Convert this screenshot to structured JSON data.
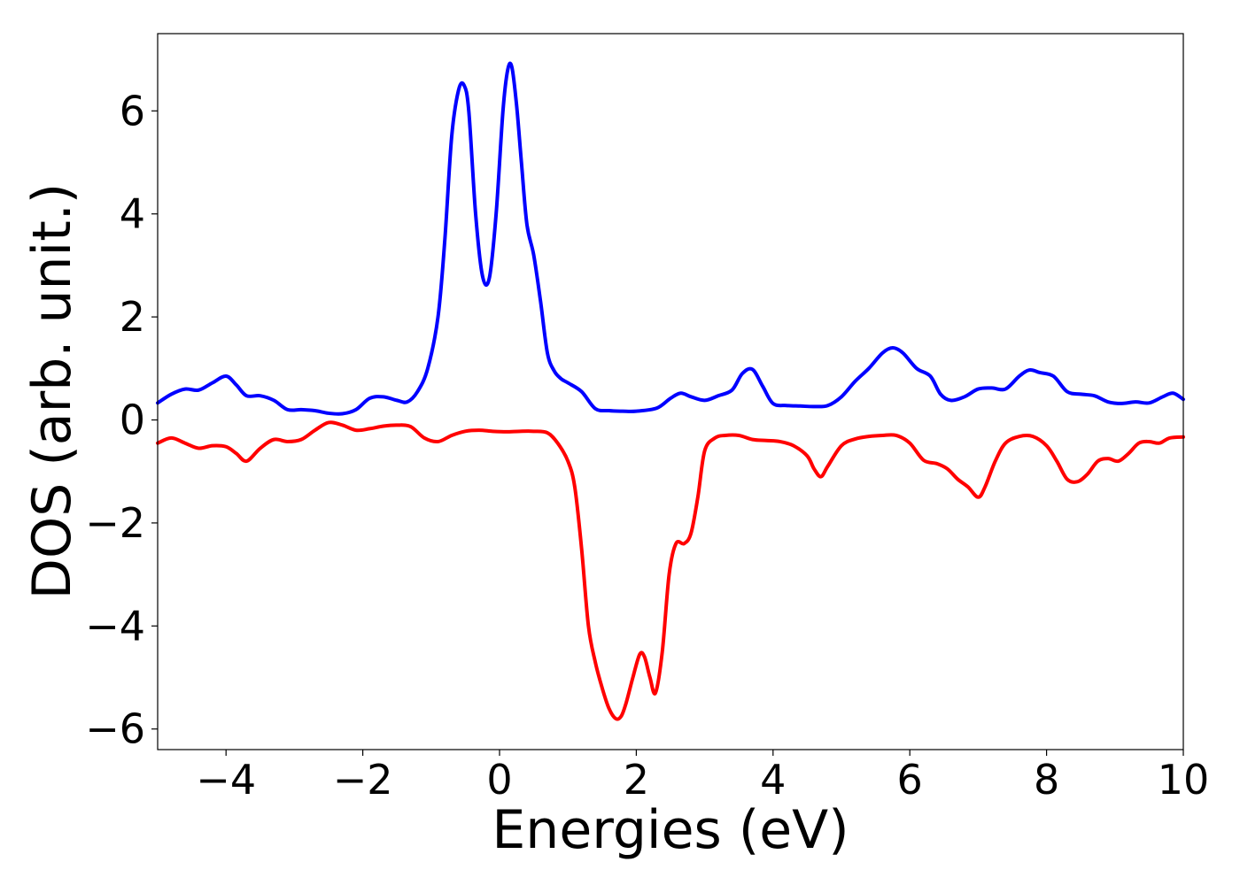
{
  "chart_data": {
    "type": "line",
    "title": "",
    "xlabel": "Energies (eV)",
    "ylabel": "DOS (arb. unit.)",
    "xlim": [
      -5,
      10
    ],
    "ylim": [
      -6.4,
      7.5
    ],
    "grid": false,
    "legend": "none",
    "xticks": [
      -4,
      -2,
      0,
      2,
      4,
      6,
      8,
      10
    ],
    "yticks": [
      -6,
      -4,
      -2,
      0,
      2,
      4,
      6
    ],
    "xtick_labels": [
      "−4",
      "−2",
      "0",
      "2",
      "4",
      "6",
      "8",
      "10"
    ],
    "ytick_labels": [
      "−6",
      "−4",
      "−2",
      "0",
      "2",
      "4",
      "6"
    ],
    "series": [
      {
        "color": "#0000ff",
        "x": [
          -5.0,
          -4.8,
          -4.6,
          -4.4,
          -4.2,
          -4.0,
          -3.85,
          -3.7,
          -3.5,
          -3.3,
          -3.1,
          -2.9,
          -2.7,
          -2.5,
          -2.3,
          -2.1,
          -1.9,
          -1.7,
          -1.5,
          -1.35,
          -1.2,
          -1.05,
          -0.9,
          -0.8,
          -0.7,
          -0.6,
          -0.52,
          -0.45,
          -0.35,
          -0.25,
          -0.15,
          -0.05,
          0.05,
          0.12,
          0.18,
          0.25,
          0.32,
          0.4,
          0.5,
          0.6,
          0.7,
          0.8,
          0.9,
          1.0,
          1.2,
          1.4,
          1.6,
          1.8,
          2.0,
          2.3,
          2.5,
          2.65,
          2.8,
          3.0,
          3.2,
          3.4,
          3.55,
          3.7,
          3.85,
          4.0,
          4.2,
          4.4,
          4.6,
          4.8,
          5.0,
          5.2,
          5.4,
          5.6,
          5.75,
          5.9,
          6.1,
          6.3,
          6.45,
          6.6,
          6.8,
          7.0,
          7.2,
          7.4,
          7.6,
          7.75,
          7.9,
          8.1,
          8.3,
          8.5,
          8.7,
          8.9,
          9.1,
          9.3,
          9.5,
          9.7,
          9.85,
          10.0
        ],
        "y": [
          0.33,
          0.5,
          0.6,
          0.58,
          0.72,
          0.85,
          0.68,
          0.47,
          0.47,
          0.38,
          0.2,
          0.2,
          0.18,
          0.13,
          0.12,
          0.2,
          0.42,
          0.45,
          0.38,
          0.35,
          0.55,
          1.0,
          2.0,
          3.5,
          5.5,
          6.4,
          6.5,
          6.0,
          4.0,
          2.8,
          2.75,
          4.0,
          6.0,
          6.8,
          6.85,
          6.1,
          5.0,
          3.8,
          3.2,
          2.3,
          1.3,
          0.95,
          0.8,
          0.72,
          0.55,
          0.22,
          0.18,
          0.17,
          0.17,
          0.23,
          0.42,
          0.52,
          0.45,
          0.38,
          0.47,
          0.58,
          0.9,
          0.98,
          0.65,
          0.32,
          0.28,
          0.27,
          0.26,
          0.28,
          0.45,
          0.75,
          1.0,
          1.3,
          1.4,
          1.3,
          1.0,
          0.85,
          0.5,
          0.38,
          0.45,
          0.6,
          0.62,
          0.6,
          0.85,
          0.97,
          0.92,
          0.85,
          0.55,
          0.5,
          0.47,
          0.35,
          0.32,
          0.35,
          0.33,
          0.45,
          0.52,
          0.4
        ]
      },
      {
        "color": "#ff0000",
        "x": [
          -5.0,
          -4.8,
          -4.6,
          -4.4,
          -4.2,
          -4.0,
          -3.85,
          -3.7,
          -3.5,
          -3.3,
          -3.1,
          -2.9,
          -2.7,
          -2.5,
          -2.3,
          -2.1,
          -1.9,
          -1.7,
          -1.5,
          -1.3,
          -1.1,
          -0.9,
          -0.7,
          -0.5,
          -0.3,
          -0.1,
          0.1,
          0.3,
          0.5,
          0.7,
          0.85,
          1.0,
          1.1,
          1.2,
          1.3,
          1.4,
          1.5,
          1.6,
          1.7,
          1.78,
          1.85,
          1.95,
          2.05,
          2.12,
          2.2,
          2.28,
          2.38,
          2.48,
          2.58,
          2.7,
          2.8,
          2.9,
          3.0,
          3.15,
          3.3,
          3.5,
          3.7,
          3.9,
          4.1,
          4.3,
          4.5,
          4.6,
          4.7,
          4.8,
          5.0,
          5.2,
          5.4,
          5.6,
          5.8,
          6.0,
          6.2,
          6.4,
          6.55,
          6.7,
          6.85,
          7.0,
          7.1,
          7.25,
          7.4,
          7.6,
          7.8,
          8.0,
          8.15,
          8.3,
          8.45,
          8.6,
          8.75,
          8.9,
          9.05,
          9.2,
          9.35,
          9.5,
          9.65,
          9.8,
          10.0
        ],
        "y": [
          -0.45,
          -0.35,
          -0.45,
          -0.55,
          -0.5,
          -0.52,
          -0.65,
          -0.8,
          -0.55,
          -0.38,
          -0.42,
          -0.38,
          -0.2,
          -0.05,
          -0.1,
          -0.2,
          -0.17,
          -0.12,
          -0.1,
          -0.13,
          -0.35,
          -0.42,
          -0.3,
          -0.22,
          -0.2,
          -0.22,
          -0.23,
          -0.22,
          -0.22,
          -0.25,
          -0.45,
          -0.8,
          -1.3,
          -2.5,
          -4.0,
          -4.7,
          -5.2,
          -5.6,
          -5.8,
          -5.75,
          -5.5,
          -5.0,
          -4.55,
          -4.6,
          -5.0,
          -5.3,
          -4.5,
          -3.0,
          -2.4,
          -2.4,
          -2.2,
          -1.5,
          -0.6,
          -0.35,
          -0.3,
          -0.3,
          -0.38,
          -0.4,
          -0.42,
          -0.5,
          -0.7,
          -0.95,
          -1.1,
          -0.9,
          -0.5,
          -0.37,
          -0.32,
          -0.3,
          -0.3,
          -0.45,
          -0.78,
          -0.85,
          -0.95,
          -1.15,
          -1.3,
          -1.5,
          -1.3,
          -0.8,
          -0.45,
          -0.32,
          -0.32,
          -0.5,
          -0.8,
          -1.15,
          -1.2,
          -1.05,
          -0.8,
          -0.75,
          -0.8,
          -0.65,
          -0.45,
          -0.42,
          -0.45,
          -0.35,
          -0.33
        ]
      }
    ]
  }
}
